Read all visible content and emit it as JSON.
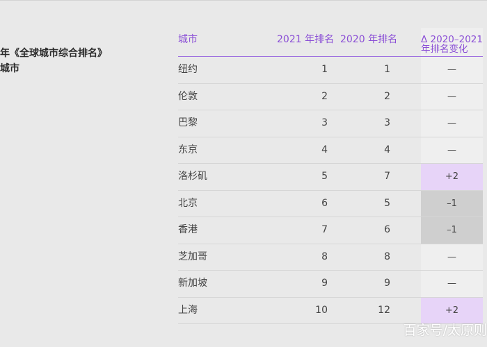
{
  "left_title": {
    "line1": "年《全球城市综合排名》",
    "line2": "城市"
  },
  "table": {
    "headers": {
      "city": "城市",
      "rank_2021": "2021 年排名",
      "rank_2020": "2020 年排名",
      "delta_line1": "Δ 2020–2021",
      "delta_line2": "年排名变化"
    },
    "rows": [
      {
        "city": "纽约",
        "rank_2021": "1",
        "rank_2020": "1",
        "delta": "—",
        "trend": "same"
      },
      {
        "city": "伦敦",
        "rank_2021": "2",
        "rank_2020": "2",
        "delta": "—",
        "trend": "same"
      },
      {
        "city": "巴黎",
        "rank_2021": "3",
        "rank_2020": "3",
        "delta": "—",
        "trend": "same"
      },
      {
        "city": "东京",
        "rank_2021": "4",
        "rank_2020": "4",
        "delta": "—",
        "trend": "same"
      },
      {
        "city": "洛杉矶",
        "rank_2021": "5",
        "rank_2020": "7",
        "delta": "+2",
        "trend": "up"
      },
      {
        "city": "北京",
        "rank_2021": "6",
        "rank_2020": "5",
        "delta": "–1",
        "trend": "down"
      },
      {
        "city": "香港",
        "rank_2021": "7",
        "rank_2020": "6",
        "delta": "–1",
        "trend": "down"
      },
      {
        "city": "芝加哥",
        "rank_2021": "8",
        "rank_2020": "8",
        "delta": "—",
        "trend": "same"
      },
      {
        "city": "新加坡",
        "rank_2021": "9",
        "rank_2020": "9",
        "delta": "—",
        "trend": "same"
      },
      {
        "city": "上海",
        "rank_2021": "10",
        "rank_2020": "12",
        "delta": "+2",
        "trend": "up"
      }
    ]
  },
  "colors": {
    "accent": "#8b4fd6",
    "up_bg": "#e7d4f8",
    "down_bg": "#cfcfcf",
    "same_bg": "#efefef"
  },
  "watermark": "百家号/太原则"
}
